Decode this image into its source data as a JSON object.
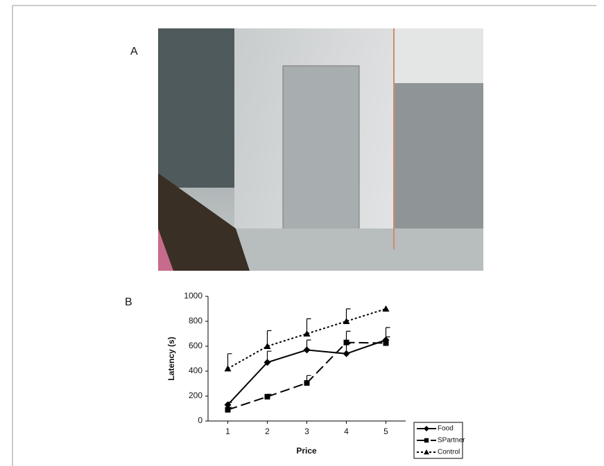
{
  "panels": [
    "A",
    "B"
  ],
  "chart_data": {
    "type": "line",
    "x_label": "Price",
    "y_label": "Latency (s)",
    "x": [
      1,
      2,
      3,
      4,
      5
    ],
    "xlim": [
      0.5,
      5.5
    ],
    "xticks": [
      1,
      2,
      3,
      4,
      5
    ],
    "ylim": [
      0,
      1000
    ],
    "yticks": [
      0,
      200,
      400,
      600,
      800,
      1000
    ],
    "grid": false,
    "legend": "bottom-right",
    "series": [
      {
        "name": "Food",
        "color": "#000000",
        "line_style": "solid",
        "marker": "diamond",
        "values": [
          130,
          470,
          570,
          540,
          650
        ],
        "errors": [
          20,
          90,
          80,
          80,
          100
        ]
      },
      {
        "name": "SPartner",
        "color": "#000000",
        "line_style": "dashed",
        "marker": "square",
        "values": [
          90,
          195,
          305,
          630,
          625
        ],
        "errors": [
          20,
          20,
          60,
          90,
          50
        ]
      },
      {
        "name": "Control",
        "color": "#000000",
        "line_style": "dotted",
        "marker": "triangle",
        "values": [
          420,
          600,
          700,
          800,
          900
        ],
        "errors": [
          120,
          125,
          120,
          100,
          null
        ]
      }
    ]
  }
}
